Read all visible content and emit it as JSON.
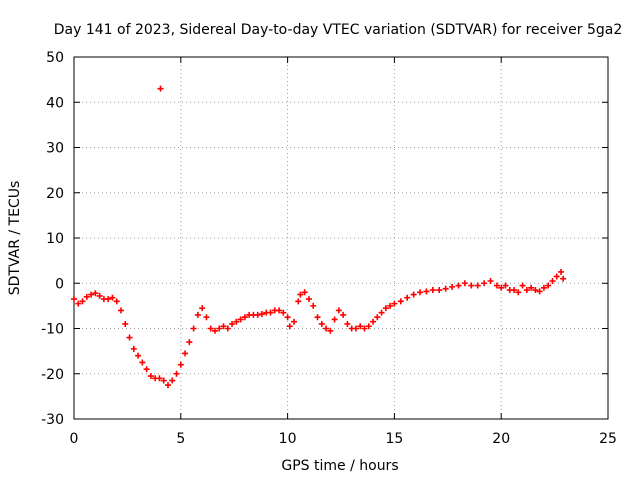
{
  "chart_data": {
    "type": "scatter",
    "title": "Day 141 of 2023, Sidereal Day-to-day VTEC variation (SDTVAR) for receiver 5ga2",
    "xlabel": "GPS time / hours",
    "ylabel": "SDTVAR / TECUs",
    "xlim": [
      0,
      25
    ],
    "ylim": [
      -30,
      50
    ],
    "xticks": [
      0,
      5,
      10,
      15,
      20,
      25
    ],
    "yticks": [
      -30,
      -20,
      -10,
      0,
      10,
      20,
      30,
      40,
      50
    ],
    "x_tick_labels": [
      "0",
      "5",
      "10",
      "15",
      "20",
      "25"
    ],
    "y_tick_labels": [
      "-30",
      "-20",
      "-10",
      "0",
      "10",
      "20",
      "30",
      "40",
      "50"
    ],
    "grid": true,
    "marker": "plus",
    "series": [
      {
        "name": "5ga2",
        "color": "#ff0000",
        "points": [
          [
            0.0,
            -3.5
          ],
          [
            0.2,
            -4.5
          ],
          [
            0.4,
            -4.0
          ],
          [
            0.6,
            -3.0
          ],
          [
            0.8,
            -2.5
          ],
          [
            1.0,
            -2.2
          ],
          [
            1.2,
            -2.8
          ],
          [
            1.4,
            -3.5
          ],
          [
            1.6,
            -3.5
          ],
          [
            1.8,
            -3.2
          ],
          [
            2.0,
            -4.0
          ],
          [
            2.2,
            -6.0
          ],
          [
            2.4,
            -9.0
          ],
          [
            2.6,
            -12.0
          ],
          [
            2.8,
            -14.5
          ],
          [
            3.0,
            -16.0
          ],
          [
            3.2,
            -17.5
          ],
          [
            3.4,
            -19.0
          ],
          [
            3.6,
            -20.5
          ],
          [
            3.8,
            -21.0
          ],
          [
            4.0,
            -21.0
          ],
          [
            4.2,
            -21.5
          ],
          [
            4.4,
            -22.5
          ],
          [
            4.6,
            -21.5
          ],
          [
            4.8,
            -20.0
          ],
          [
            5.0,
            -18.0
          ],
          [
            5.2,
            -15.5
          ],
          [
            5.4,
            -13.0
          ],
          [
            5.6,
            -10.0
          ],
          [
            5.8,
            -7.0
          ],
          [
            6.0,
            -5.5
          ],
          [
            6.2,
            -7.5
          ],
          [
            6.4,
            -10.0
          ],
          [
            6.6,
            -10.5
          ],
          [
            6.8,
            -10.0
          ],
          [
            7.0,
            -9.5
          ],
          [
            7.2,
            -10.0
          ],
          [
            7.4,
            -9.0
          ],
          [
            7.6,
            -8.5
          ],
          [
            7.8,
            -8.0
          ],
          [
            8.0,
            -7.5
          ],
          [
            8.2,
            -7.0
          ],
          [
            8.4,
            -7.0
          ],
          [
            8.6,
            -7.0
          ],
          [
            8.8,
            -6.8
          ],
          [
            9.0,
            -6.5
          ],
          [
            9.2,
            -6.5
          ],
          [
            9.4,
            -6.0
          ],
          [
            9.6,
            -6.0
          ],
          [
            9.8,
            -6.5
          ],
          [
            10.0,
            -7.5
          ],
          [
            10.1,
            -9.5
          ],
          [
            10.3,
            -8.5
          ],
          [
            10.5,
            -4.0
          ],
          [
            10.6,
            -2.5
          ],
          [
            10.8,
            -2.0
          ],
          [
            11.0,
            -3.5
          ],
          [
            11.2,
            -5.0
          ],
          [
            11.4,
            -7.5
          ],
          [
            11.6,
            -9.0
          ],
          [
            11.8,
            -10.0
          ],
          [
            12.0,
            -10.5
          ],
          [
            12.2,
            -8.0
          ],
          [
            12.4,
            -6.0
          ],
          [
            12.6,
            -7.0
          ],
          [
            12.8,
            -9.0
          ],
          [
            13.0,
            -10.0
          ],
          [
            13.2,
            -10.0
          ],
          [
            13.4,
            -9.5
          ],
          [
            13.6,
            -10.0
          ],
          [
            13.8,
            -9.5
          ],
          [
            14.0,
            -8.5
          ],
          [
            14.2,
            -7.5
          ],
          [
            14.4,
            -6.5
          ],
          [
            14.6,
            -5.5
          ],
          [
            14.8,
            -5.0
          ],
          [
            15.0,
            -4.5
          ],
          [
            15.3,
            -4.0
          ],
          [
            15.6,
            -3.2
          ],
          [
            15.9,
            -2.5
          ],
          [
            16.2,
            -2.0
          ],
          [
            16.5,
            -1.8
          ],
          [
            16.8,
            -1.5
          ],
          [
            17.1,
            -1.5
          ],
          [
            17.4,
            -1.2
          ],
          [
            17.7,
            -0.8
          ],
          [
            18.0,
            -0.5
          ],
          [
            18.3,
            0.0
          ],
          [
            18.6,
            -0.5
          ],
          [
            18.9,
            -0.5
          ],
          [
            19.2,
            0.0
          ],
          [
            19.5,
            0.5
          ],
          [
            19.8,
            -0.5
          ],
          [
            20.0,
            -1.0
          ],
          [
            20.2,
            -0.5
          ],
          [
            20.4,
            -1.5
          ],
          [
            20.6,
            -1.5
          ],
          [
            20.8,
            -2.0
          ],
          [
            21.0,
            -0.5
          ],
          [
            21.2,
            -1.5
          ],
          [
            21.4,
            -1.0
          ],
          [
            21.6,
            -1.5
          ],
          [
            21.8,
            -1.8
          ],
          [
            22.0,
            -1.0
          ],
          [
            22.2,
            -0.5
          ],
          [
            22.4,
            0.5
          ],
          [
            22.6,
            1.5
          ],
          [
            22.8,
            2.5
          ],
          [
            22.9,
            1.0
          ],
          [
            4.05,
            43.0
          ]
        ]
      }
    ]
  }
}
